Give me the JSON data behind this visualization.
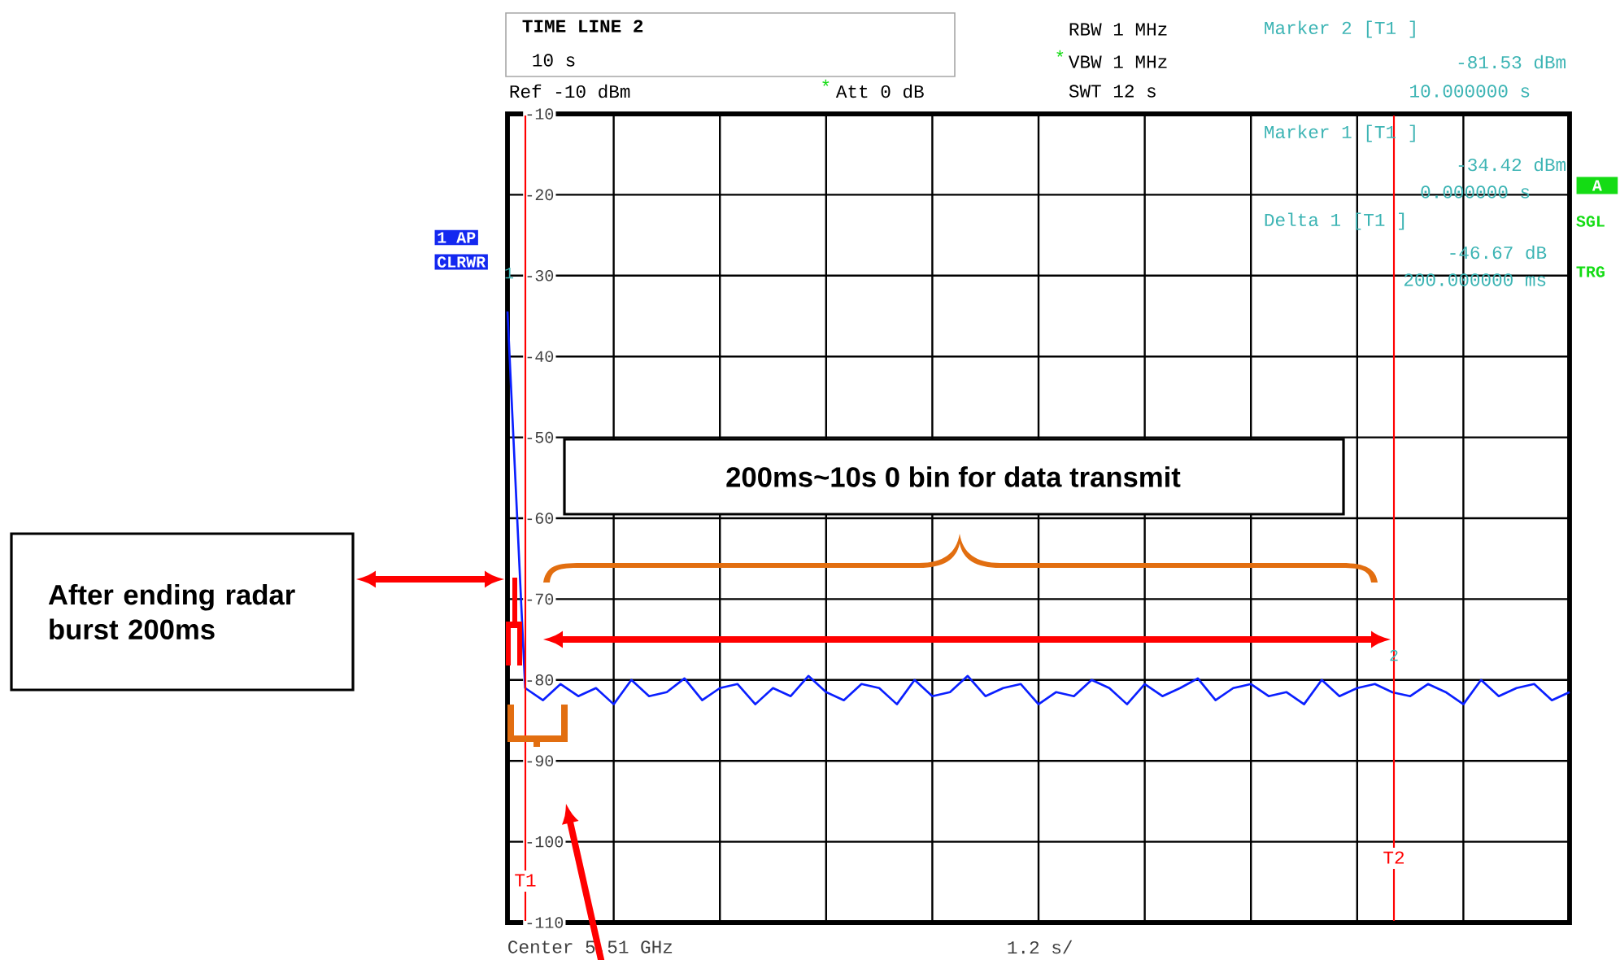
{
  "chart_data": {
    "type": "line",
    "annotations": [
      "TIME LINE 2",
      "10 s",
      "Ref -10 dBm",
      "*",
      "Att 0 dB",
      "RBW 1 MHz",
      "*",
      "VBW 1 MHz",
      "SWT 12 s",
      "Marker 2 [T1 ]",
      "-81.53 dBm",
      "10.000000 s",
      "Marker 1 [T1 ]",
      "-34.42 dBm",
      "0.000000 s",
      "Delta 1 [T1 ]",
      "-46.67 dB",
      "200.000000 ms",
      "1 AP",
      "CLRWR",
      "A",
      "SGL",
      "TRG",
      "Center 5.51 GHz",
      "1.2 s/",
      "200ms~10s 0 bin for data transmit",
      "After ending radar burst 200ms",
      "1",
      "2",
      "T1",
      "T2"
    ],
    "categories": [
      null,
      null,
      null,
      null,
      null,
      null,
      null,
      null,
      null,
      null,
      null,
      null,
      null,
      null,
      null,
      null,
      null,
      null,
      null,
      null,
      null,
      null,
      null,
      null,
      null,
      null,
      null,
      null,
      null,
      null,
      null,
      null,
      null,
      null,
      null,
      null,
      null,
      null,
      null,
      null,
      null,
      null,
      null,
      null,
      null,
      null,
      null,
      null,
      null,
      null,
      null,
      null,
      null,
      null,
      null,
      null,
      null,
      null,
      null,
      null,
      null
    ],
    "series": [
      {
        "color": "#0a1fff",
        "values": [
          -34.42,
          -81,
          -82.5,
          -80.5,
          -82,
          -81,
          -83,
          -80,
          -82,
          -81.5,
          -79.8,
          -82.5,
          -81,
          -80.5,
          -83,
          -81,
          -82,
          -79.5,
          -81.5,
          -82.5,
          -80.5,
          -81,
          -83,
          -80,
          -82,
          -81.5,
          -79.5,
          -82,
          -81,
          -80.5,
          -83,
          -81.5,
          -82,
          -80,
          -81,
          -83,
          -80.5,
          -82,
          -81,
          -79.8,
          -82.5,
          -81,
          -80.5,
          -82,
          -81.5,
          -83,
          -80,
          -82,
          -81,
          -80.5,
          -81.53,
          -82,
          -80.5,
          -81.5,
          -83,
          -80,
          -82,
          -81,
          -80.5,
          -82.5,
          -81.5
        ]
      }
    ],
    "ylim": [
      -110,
      -10
    ],
    "yticks": [
      -10,
      -20,
      -30,
      -40,
      -50,
      -60,
      -70,
      -80,
      -90,
      -100,
      -110
    ],
    "tick_labels": "y",
    "grid": true
  }
}
